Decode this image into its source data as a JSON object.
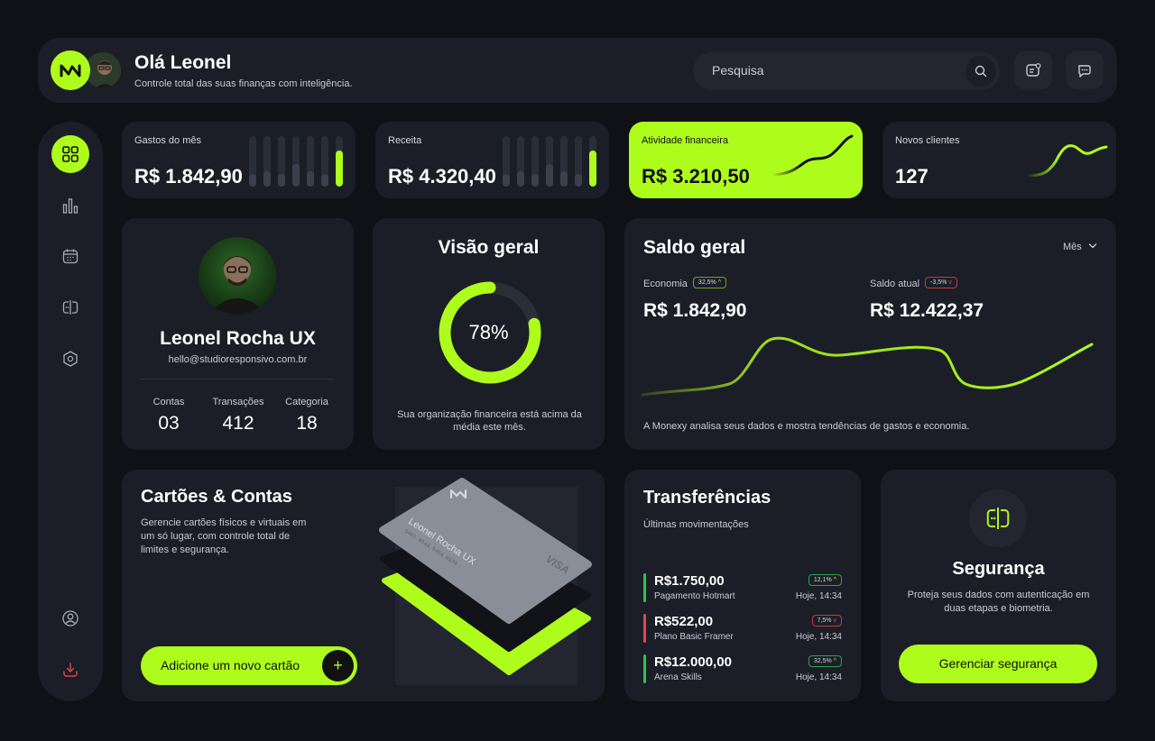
{
  "header": {
    "greeting": "Olá Leonel",
    "subtitle": "Controle total das suas finanças com inteligência.",
    "search_placeholder": "Pesquisa"
  },
  "colors": {
    "accent": "#aefc1c",
    "background": "#0f1117",
    "card": "#1b1e27",
    "negative": "#e0474c"
  },
  "sidebar": {
    "items": [
      {
        "icon": "grid-icon",
        "active": true
      },
      {
        "icon": "bar-chart-icon",
        "active": false
      },
      {
        "icon": "calendar-icon",
        "active": false
      },
      {
        "icon": "card-lock-icon",
        "active": false
      },
      {
        "icon": "hexagon-settings-icon",
        "active": false
      },
      {
        "icon": "user-circle-icon",
        "active": false
      },
      {
        "icon": "logout-icon",
        "active": false
      }
    ]
  },
  "stats": {
    "gastos": {
      "label": "Gastos do mês",
      "value": "R$ 1.842,90",
      "bars": [
        0.25,
        0.3,
        0.25,
        0.45,
        0.3,
        0.25,
        0.72
      ]
    },
    "receita": {
      "label": "Receita",
      "value": "R$ 4.320,40",
      "bars": [
        0.25,
        0.3,
        0.25,
        0.45,
        0.3,
        0.25,
        0.72
      ]
    },
    "atividade": {
      "label": "Atividade financeira",
      "value": "R$ 3.210,50"
    },
    "clientes": {
      "label": "Novos clientes",
      "value": "127"
    }
  },
  "profile": {
    "name": "Leonel Rocha UX",
    "email": "hello@studioresponsivo.com.br",
    "stats": [
      {
        "label": "Contas",
        "value": "03"
      },
      {
        "label": "Transações",
        "value": "412"
      },
      {
        "label": "Categoria",
        "value": "18"
      }
    ]
  },
  "overview": {
    "title": "Visão geral",
    "percent_label": "78%",
    "percent": 0.78,
    "description": "Sua organização financeira está acima da média este mês."
  },
  "saldo": {
    "title": "Saldo geral",
    "period": "Mês",
    "economia_label": "Economia",
    "economia_badge": "32,5%",
    "economia_value": "R$ 1.842,90",
    "atual_label": "Saldo atual",
    "atual_badge": "-3,5%",
    "atual_value": "R$ 12.422,37",
    "note": "A Monexy analisa seus dados e mostra tendências de gastos e economia."
  },
  "cards": {
    "title": "Cartões & Contas",
    "description": "Gerencie cartões físicos e virtuais em um só lugar, com controle total de limites e segurança.",
    "button": "Adicione um novo cartão",
    "plus": "+",
    "card_holder": "Leonel Rocha UX",
    "card_number": "5481 0544 5454 0570",
    "card_brand": "VISA"
  },
  "transfers": {
    "title": "Transferências",
    "subtitle": "Últimas movimentações",
    "items": [
      {
        "amount": "R$1.750,00",
        "name": "Pagamento Hotmart",
        "time": "Hoje, 14:34",
        "badge": "12,1%",
        "trend": "up"
      },
      {
        "amount": "R$522,00",
        "name": "Plano Basic Framer",
        "time": "Hoje, 14:34",
        "badge": "7,5%",
        "trend": "down"
      },
      {
        "amount": "R$12.000,00",
        "name": "Arena Skills",
        "time": "Hoje, 14:34",
        "badge": "32,5%",
        "trend": "up"
      }
    ]
  },
  "security": {
    "title": "Segurança",
    "description": "Proteja seus dados com autenticação em duas etapas e biometria.",
    "button": "Gerenciar segurança"
  }
}
